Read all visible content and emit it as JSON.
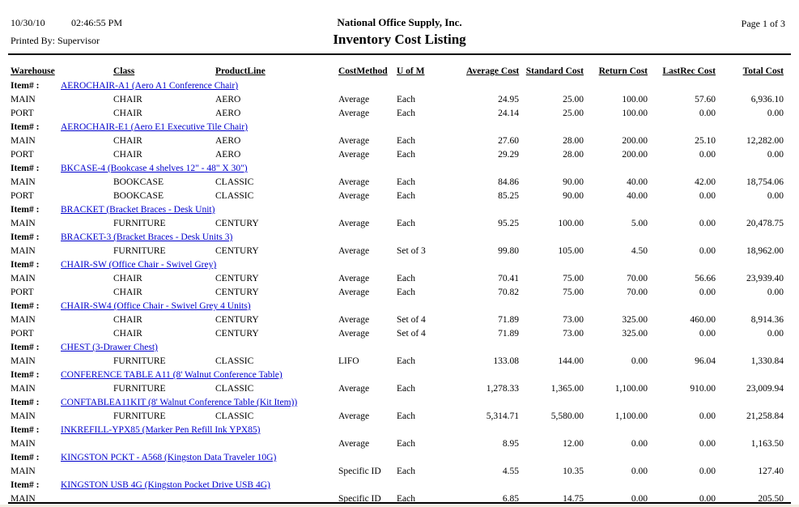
{
  "header": {
    "date": "10/30/10",
    "time": "02:46:55 PM",
    "printed_by": "Printed By: Supervisor",
    "company": "National Office Supply, Inc.",
    "title": "Inventory Cost Listing",
    "page": "Page 1 of 3"
  },
  "columns": [
    "Warehouse",
    "Class",
    "ProductLine",
    "CostMethod",
    "U of M",
    "Average Cost",
    "Standard Cost",
    "Return Cost",
    "LastRec Cost",
    "Total Cost"
  ],
  "item_label": "Item# :",
  "groups": [
    {
      "name": "AEROCHAIR-A1 (Aero A1 Conference Chair)",
      "rows": [
        {
          "warehouse": "MAIN",
          "class": "CHAIR",
          "product_line": "AERO",
          "cost_method": "Average",
          "uofm": "Each",
          "average_cost": "24.95",
          "standard_cost": "25.00",
          "return_cost": "100.00",
          "last_rec_cost": "57.60",
          "total_cost": "6,936.10"
        },
        {
          "warehouse": "PORT",
          "class": "CHAIR",
          "product_line": "AERO",
          "cost_method": "Average",
          "uofm": "Each",
          "average_cost": "24.14",
          "standard_cost": "25.00",
          "return_cost": "100.00",
          "last_rec_cost": "0.00",
          "total_cost": "0.00"
        }
      ]
    },
    {
      "name": "AEROCHAIR-E1 (Aero E1 Executive Tile Chair)",
      "rows": [
        {
          "warehouse": "MAIN",
          "class": "CHAIR",
          "product_line": "AERO",
          "cost_method": "Average",
          "uofm": "Each",
          "average_cost": "27.60",
          "standard_cost": "28.00",
          "return_cost": "200.00",
          "last_rec_cost": "25.10",
          "total_cost": "12,282.00"
        },
        {
          "warehouse": "PORT",
          "class": "CHAIR",
          "product_line": "AERO",
          "cost_method": "Average",
          "uofm": "Each",
          "average_cost": "29.29",
          "standard_cost": "28.00",
          "return_cost": "200.00",
          "last_rec_cost": "0.00",
          "total_cost": "0.00"
        }
      ]
    },
    {
      "name": "BKCASE-4 (Bookcase 4 shelves 12\" - 48\" X 30\")",
      "rows": [
        {
          "warehouse": "MAIN",
          "class": "BOOKCASE",
          "product_line": "CLASSIC",
          "cost_method": "Average",
          "uofm": "Each",
          "average_cost": "84.86",
          "standard_cost": "90.00",
          "return_cost": "40.00",
          "last_rec_cost": "42.00",
          "total_cost": "18,754.06"
        },
        {
          "warehouse": "PORT",
          "class": "BOOKCASE",
          "product_line": "CLASSIC",
          "cost_method": "Average",
          "uofm": "Each",
          "average_cost": "85.25",
          "standard_cost": "90.00",
          "return_cost": "40.00",
          "last_rec_cost": "0.00",
          "total_cost": "0.00"
        }
      ]
    },
    {
      "name": "BRACKET (Bracket Braces - Desk Unit)",
      "rows": [
        {
          "warehouse": "MAIN",
          "class": "FURNITURE",
          "product_line": "CENTURY",
          "cost_method": "Average",
          "uofm": "Each",
          "average_cost": "95.25",
          "standard_cost": "100.00",
          "return_cost": "5.00",
          "last_rec_cost": "0.00",
          "total_cost": "20,478.75"
        }
      ]
    },
    {
      "name": "BRACKET-3 (Bracket Braces - Desk Units 3)",
      "rows": [
        {
          "warehouse": "MAIN",
          "class": "FURNITURE",
          "product_line": "CENTURY",
          "cost_method": "Average",
          "uofm": "Set of 3",
          "average_cost": "99.80",
          "standard_cost": "105.00",
          "return_cost": "4.50",
          "last_rec_cost": "0.00",
          "total_cost": "18,962.00"
        }
      ]
    },
    {
      "name": "CHAIR-SW (Office Chair - Swivel Grey)",
      "rows": [
        {
          "warehouse": "MAIN",
          "class": "CHAIR",
          "product_line": "CENTURY",
          "cost_method": "Average",
          "uofm": "Each",
          "average_cost": "70.41",
          "standard_cost": "75.00",
          "return_cost": "70.00",
          "last_rec_cost": "56.66",
          "total_cost": "23,939.40"
        },
        {
          "warehouse": "PORT",
          "class": "CHAIR",
          "product_line": "CENTURY",
          "cost_method": "Average",
          "uofm": "Each",
          "average_cost": "70.82",
          "standard_cost": "75.00",
          "return_cost": "70.00",
          "last_rec_cost": "0.00",
          "total_cost": "0.00"
        }
      ]
    },
    {
      "name": "CHAIR-SW4 (Office Chair - Swivel Grey 4 Units)",
      "rows": [
        {
          "warehouse": "MAIN",
          "class": "CHAIR",
          "product_line": "CENTURY",
          "cost_method": "Average",
          "uofm": "Set of 4",
          "average_cost": "71.89",
          "standard_cost": "73.00",
          "return_cost": "325.00",
          "last_rec_cost": "460.00",
          "total_cost": "8,914.36"
        },
        {
          "warehouse": "PORT",
          "class": "CHAIR",
          "product_line": "CENTURY",
          "cost_method": "Average",
          "uofm": "Set of 4",
          "average_cost": "71.89",
          "standard_cost": "73.00",
          "return_cost": "325.00",
          "last_rec_cost": "0.00",
          "total_cost": "0.00"
        }
      ]
    },
    {
      "name": "CHEST (3-Drawer Chest)",
      "rows": [
        {
          "warehouse": "MAIN",
          "class": "FURNITURE",
          "product_line": "CLASSIC",
          "cost_method": "LIFO",
          "uofm": "Each",
          "average_cost": "133.08",
          "standard_cost": "144.00",
          "return_cost": "0.00",
          "last_rec_cost": "96.04",
          "total_cost": "1,330.84"
        }
      ]
    },
    {
      "name": "CONFERENCE TABLE A11 (8' Walnut Conference Table)",
      "rows": [
        {
          "warehouse": "MAIN",
          "class": "FURNITURE",
          "product_line": "CLASSIC",
          "cost_method": "Average",
          "uofm": "Each",
          "average_cost": "1,278.33",
          "standard_cost": "1,365.00",
          "return_cost": "1,100.00",
          "last_rec_cost": "910.00",
          "total_cost": "23,009.94"
        }
      ]
    },
    {
      "name": "CONFTABLEA11KIT (8' Walnut Conference Table (Kit Item))",
      "rows": [
        {
          "warehouse": "MAIN",
          "class": "FURNITURE",
          "product_line": "CLASSIC",
          "cost_method": "Average",
          "uofm": "Each",
          "average_cost": "5,314.71",
          "standard_cost": "5,580.00",
          "return_cost": "1,100.00",
          "last_rec_cost": "0.00",
          "total_cost": "21,258.84"
        }
      ]
    },
    {
      "name": "INKREFILL-YPX85 (Marker Pen Refill Ink YPX85)",
      "rows": [
        {
          "warehouse": "MAIN",
          "class": "",
          "product_line": "",
          "cost_method": "Average",
          "uofm": "Each",
          "average_cost": "8.95",
          "standard_cost": "12.00",
          "return_cost": "0.00",
          "last_rec_cost": "0.00",
          "total_cost": "1,163.50"
        }
      ]
    },
    {
      "name": "KINGSTON PCKT - A568 (Kingston Data Traveler 10G)",
      "rows": [
        {
          "warehouse": "MAIN",
          "class": "",
          "product_line": "",
          "cost_method": "Specific ID",
          "uofm": "Each",
          "average_cost": "4.55",
          "standard_cost": "10.35",
          "return_cost": "0.00",
          "last_rec_cost": "0.00",
          "total_cost": "127.40"
        }
      ]
    },
    {
      "name": "KINGSTON USB 4G (Kingston Pocket Drive USB 4G)",
      "rows": [
        {
          "warehouse": "MAIN",
          "class": "",
          "product_line": "",
          "cost_method": "Specific ID",
          "uofm": "Each",
          "average_cost": "6.85",
          "standard_cost": "14.75",
          "return_cost": "0.00",
          "last_rec_cost": "0.00",
          "total_cost": "205.50"
        }
      ]
    }
  ]
}
